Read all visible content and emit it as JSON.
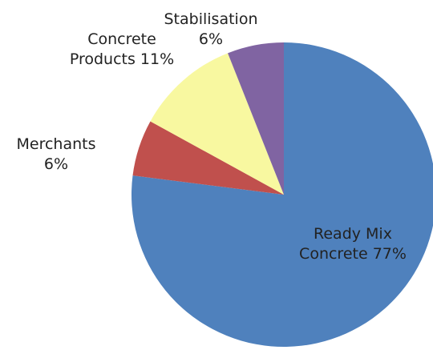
{
  "chart_data": {
    "type": "pie",
    "categories": [
      "Ready Mix Concrete",
      "Merchants",
      "Concrete Products",
      "Stabilisation"
    ],
    "values": [
      77,
      6,
      11,
      6
    ],
    "value_labels": [
      "77%",
      "6%",
      "11%",
      "6%"
    ],
    "colors": [
      "#4f81bd",
      "#c0504d",
      "#f8f8a0",
      "#8064a2"
    ]
  }
}
